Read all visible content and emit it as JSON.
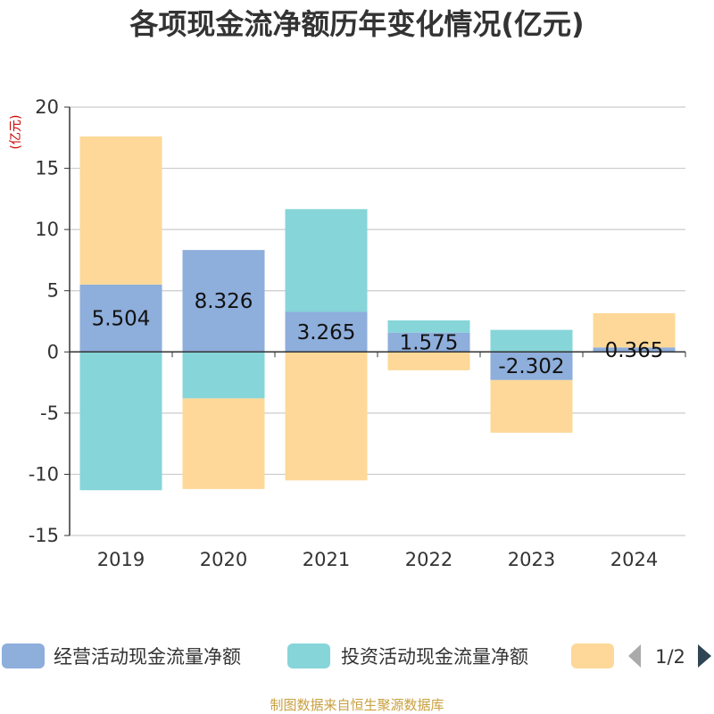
{
  "chart_data": {
    "type": "bar",
    "stacked": true,
    "title": "各项现金流净额历年变化情况(亿元)",
    "ylabel": "(亿元)",
    "categories": [
      "2019",
      "2020",
      "2021",
      "2022",
      "2023",
      "2024"
    ],
    "ylim": [
      -15,
      20
    ],
    "yticks": [
      20,
      15,
      10,
      5,
      0,
      -5,
      -10,
      -15
    ],
    "series": [
      {
        "name": "经营活动现金流量净额",
        "color": "#8eaedb",
        "values": [
          5.504,
          8.326,
          3.265,
          1.575,
          -2.302,
          0.365
        ],
        "labels": [
          "5.504",
          "8.326",
          "3.265",
          "1.575",
          "-2.302",
          "0.365"
        ]
      },
      {
        "name": "投资活动现金流量净额",
        "color": "#86d5d9",
        "values": [
          -11.3,
          -3.8,
          8.4,
          1.0,
          1.8,
          0.0
        ]
      },
      {
        "name": "",
        "color": "#fdd898",
        "values": [
          12.1,
          -7.4,
          -10.5,
          -1.5,
          -4.3,
          2.8
        ]
      }
    ],
    "legend": {
      "position": "bottom",
      "page": "1/2"
    }
  },
  "footer": "制图数据来自恒生聚源数据库"
}
